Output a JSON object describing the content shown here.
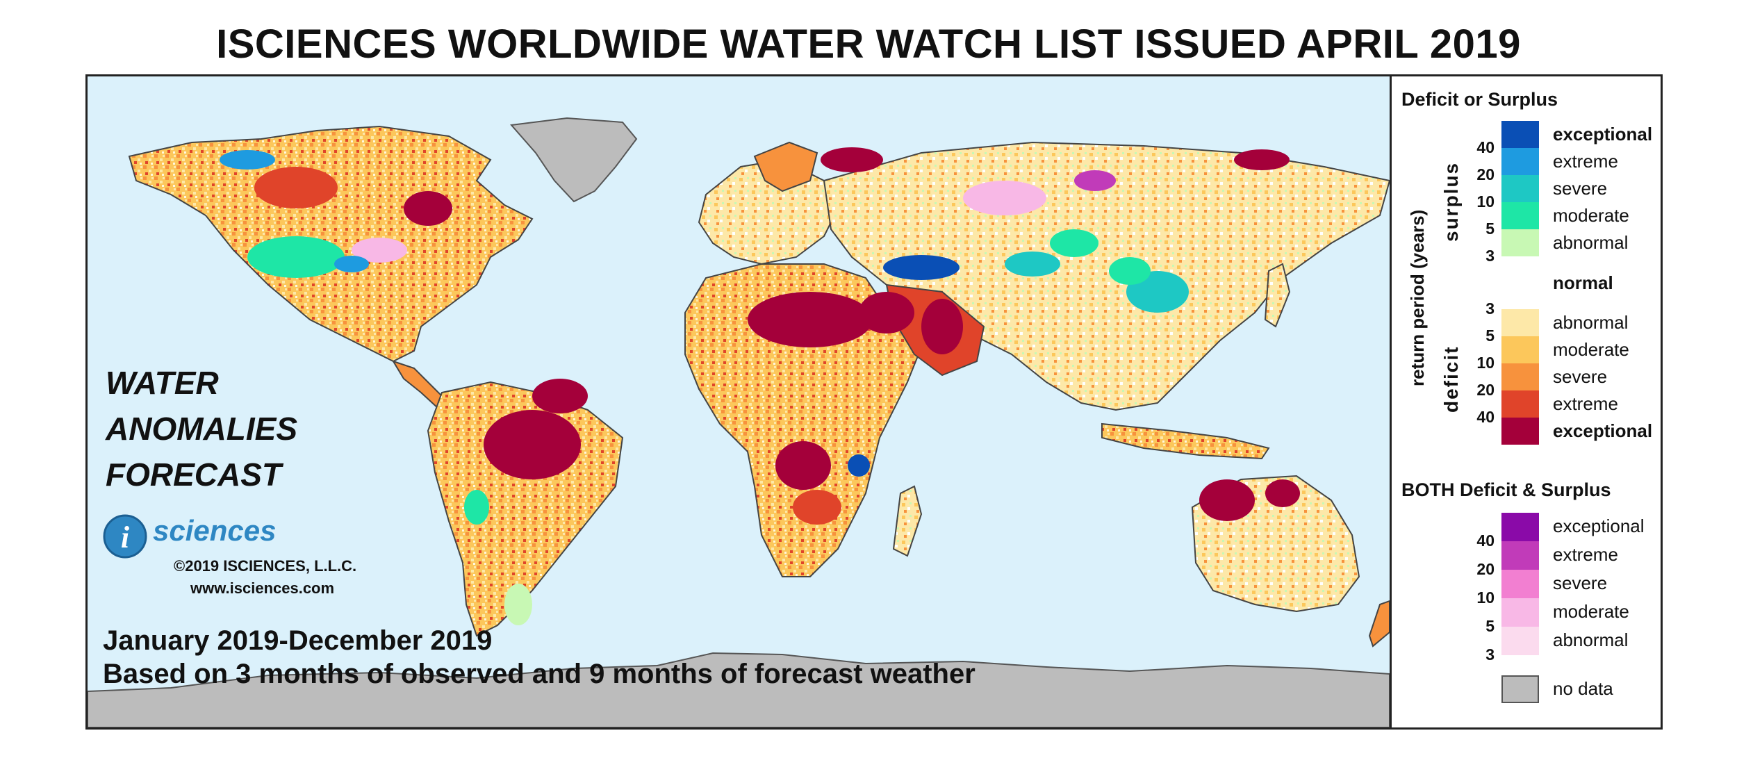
{
  "title": "ISCIENCES WORLDWIDE WATER WATCH LIST ISSUED APRIL 2019",
  "overlay": {
    "anomaly_title_lines": [
      "WATER",
      "ANOMALIES",
      "FORECAST"
    ],
    "logo_text": "sciences",
    "logo_icon": "i-circle-logo",
    "copyright": "©2019 ISCIENCES, L.L.C.",
    "website": "www.isciences.com",
    "period": "January 2019-December 2019",
    "basis": "Based on 3 months of observed and 9 months of forecast weather"
  },
  "legend": {
    "deficit_surplus": {
      "title": "Deficit or Surplus",
      "axis_label": "return period (years)",
      "surplus_label": "surplus",
      "deficit_label": "deficit",
      "categories": [
        {
          "label": "exceptional",
          "color": "#0a4fb5",
          "bold": true
        },
        {
          "label": "extreme",
          "color": "#1e9be0",
          "bold": false
        },
        {
          "label": "severe",
          "color": "#1ec8c4",
          "bold": false
        },
        {
          "label": "moderate",
          "color": "#1ee6a6",
          "bold": false
        },
        {
          "label": "abnormal",
          "color": "#c8f8b4",
          "bold": false
        },
        {
          "label": "normal",
          "color": "#ffffff",
          "bold": true
        },
        {
          "label": "abnormal",
          "color": "#fde8a8",
          "bold": false
        },
        {
          "label": "moderate",
          "color": "#fcc75b",
          "bold": false
        },
        {
          "label": "severe",
          "color": "#f7923d",
          "bold": false
        },
        {
          "label": "extreme",
          "color": "#e0442a",
          "bold": false
        },
        {
          "label": "exceptional",
          "color": "#a4003a",
          "bold": true
        }
      ],
      "surplus_ticks": [
        "40",
        "20",
        "10",
        "5",
        "3"
      ],
      "deficit_ticks": [
        "3",
        "5",
        "10",
        "20",
        "40"
      ]
    },
    "both": {
      "title": "BOTH Deficit & Surplus",
      "categories": [
        {
          "label": "exceptional",
          "color": "#8a0aa8"
        },
        {
          "label": "extreme",
          "color": "#c13bb9"
        },
        {
          "label": "severe",
          "color": "#f27fd1"
        },
        {
          "label": "moderate",
          "color": "#f8b8e6"
        },
        {
          "label": "abnormal",
          "color": "#fbdbee"
        }
      ],
      "ticks": [
        "40",
        "20",
        "10",
        "5",
        "3"
      ]
    },
    "no_data": {
      "label": "no data",
      "color": "#bcbcbc"
    }
  }
}
